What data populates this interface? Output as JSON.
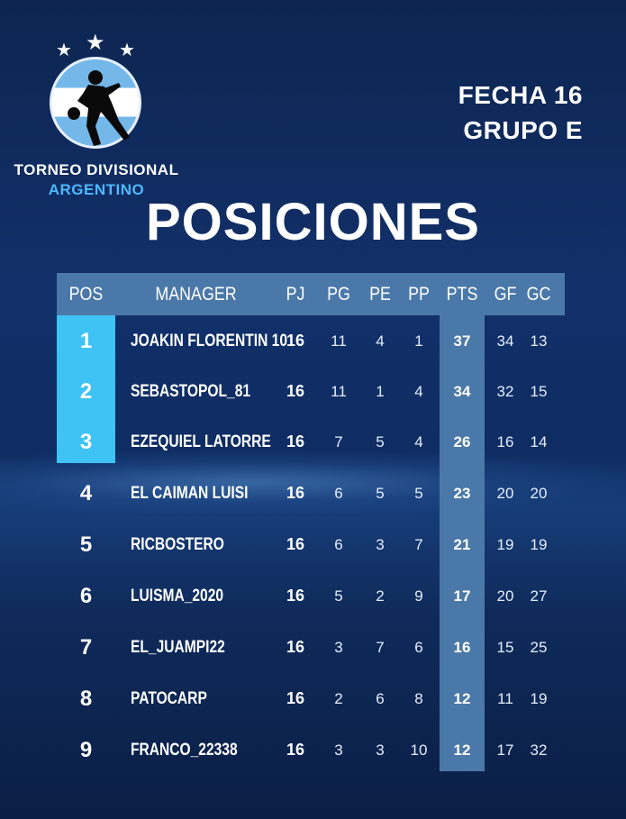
{
  "brand": {
    "line1": "TORNEO DIVISIONAL",
    "line2": "ARGENTINO",
    "logo_icon": "soccer-player-emblem-icon",
    "colors": {
      "sky": "#74b8ea",
      "sun": "#f4b81f",
      "accent": "#4fb8ff"
    }
  },
  "header": {
    "fecha": "FECHA 16",
    "grupo": "GRUPO E",
    "title": "POSICIONES"
  },
  "table": {
    "columns": [
      "POS",
      "MANAGER",
      "PJ",
      "PG",
      "PE",
      "PP",
      "PTS",
      "GF",
      "GC"
    ],
    "rows": [
      {
        "pos": "1",
        "manager": "JOAKIN FLORENTIN 10",
        "pj": "16",
        "pg": "11",
        "pe": "4",
        "pp": "1",
        "pts": "37",
        "gf": "34",
        "gc": "13"
      },
      {
        "pos": "2",
        "manager": "SEBASTOPOL_81",
        "pj": "16",
        "pg": "11",
        "pe": "1",
        "pp": "4",
        "pts": "34",
        "gf": "32",
        "gc": "15"
      },
      {
        "pos": "3",
        "manager": "EZEQUIEL LATORRE",
        "pj": "16",
        "pg": "7",
        "pe": "5",
        "pp": "4",
        "pts": "26",
        "gf": "16",
        "gc": "14"
      },
      {
        "pos": "4",
        "manager": "EL CAIMAN LUISI",
        "pj": "16",
        "pg": "6",
        "pe": "5",
        "pp": "5",
        "pts": "23",
        "gf": "20",
        "gc": "20"
      },
      {
        "pos": "5",
        "manager": "RICBOSTERO",
        "pj": "16",
        "pg": "6",
        "pe": "3",
        "pp": "7",
        "pts": "21",
        "gf": "19",
        "gc": "19"
      },
      {
        "pos": "6",
        "manager": "LUISMA_2020",
        "pj": "16",
        "pg": "5",
        "pe": "2",
        "pp": "9",
        "pts": "17",
        "gf": "20",
        "gc": "27"
      },
      {
        "pos": "7",
        "manager": "EL_JUAMPI22",
        "pj": "16",
        "pg": "3",
        "pe": "7",
        "pp": "6",
        "pts": "16",
        "gf": "15",
        "gc": "25"
      },
      {
        "pos": "8",
        "manager": "PATOCARP",
        "pj": "16",
        "pg": "2",
        "pe": "6",
        "pp": "8",
        "pts": "12",
        "gf": "11",
        "gc": "19"
      },
      {
        "pos": "9",
        "manager": "FRANCO_22338",
        "pj": "16",
        "pg": "3",
        "pe": "3",
        "pp": "10",
        "pts": "12",
        "gf": "17",
        "gc": "32"
      }
    ],
    "colors": {
      "header": "#4a78a8",
      "top3": "#3ec3f4",
      "pts_column": "#4a78a8"
    }
  }
}
